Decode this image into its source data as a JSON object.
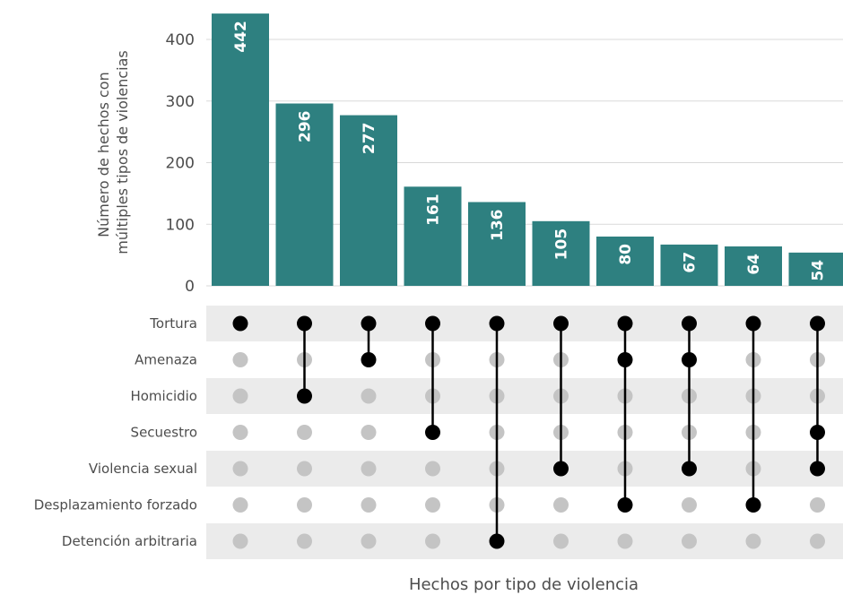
{
  "chart_data": {
    "type": "bar",
    "title": "",
    "xlabel": "Hechos por tipo de violencia",
    "ylabel": [
      "Número de hechos con",
      "múltiples tipos de violencias"
    ],
    "ylim": [
      0,
      450
    ],
    "yticks": [
      0,
      100,
      200,
      300,
      400
    ],
    "grid": true,
    "values": [
      442,
      296,
      277,
      161,
      136,
      105,
      80,
      67,
      64,
      54
    ],
    "sets": [
      "Tortura",
      "Amenaza",
      "Homicidio",
      "Secuestro",
      "Violencia sexual",
      "Desplazamiento forzado",
      "Detención arbitraria"
    ],
    "combinations": [
      [
        "Tortura"
      ],
      [
        "Tortura",
        "Homicidio"
      ],
      [
        "Tortura",
        "Amenaza"
      ],
      [
        "Tortura",
        "Secuestro"
      ],
      [
        "Tortura",
        "Detención arbitraria"
      ],
      [
        "Tortura",
        "Violencia sexual"
      ],
      [
        "Tortura",
        "Amenaza",
        "Desplazamiento forzado"
      ],
      [
        "Tortura",
        "Amenaza",
        "Violencia sexual"
      ],
      [
        "Tortura",
        "Desplazamiento forzado"
      ],
      [
        "Tortura",
        "Secuestro",
        "Violencia sexual"
      ]
    ],
    "colors": {
      "bar": "#2e8080",
      "dot_active": "#000000",
      "dot_inactive": "#c4c4c4",
      "stripe": "#ebebeb"
    }
  }
}
